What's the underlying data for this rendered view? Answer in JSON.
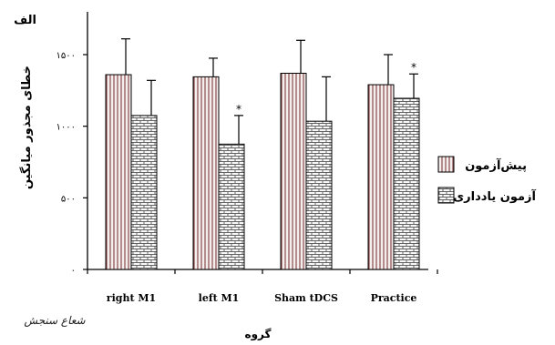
{
  "chart_data": {
    "type": "bar",
    "title": "الف",
    "xlabel": "گروه",
    "ylabel": "خطای مجذور میانگین",
    "categories": [
      "right M1",
      "left M1",
      "Sham tDCS",
      "Practice"
    ],
    "ylim": [
      0,
      1500
    ],
    "yticks": [
      0,
      500,
      1000,
      1500
    ],
    "ytick_labels": [
      "۰",
      "۵۰۰",
      "۱۰۰۰",
      "۱۵۰۰"
    ],
    "grid": false,
    "legend_position": "right",
    "series": [
      {
        "name": "پیش‌آزمون",
        "pattern": "vertical-stripes",
        "values": [
          1360,
          1345,
          1370,
          1290
        ],
        "errors": [
          250,
          130,
          230,
          210
        ],
        "significant": [
          false,
          false,
          false,
          false
        ]
      },
      {
        "name": "آزمون یادداری",
        "pattern": "brick",
        "values": [
          1075,
          875,
          1035,
          1195
        ],
        "errors": [
          245,
          200,
          310,
          170
        ],
        "significant": [
          false,
          true,
          false,
          true
        ]
      }
    ],
    "significance_marker": "*"
  },
  "logo_text": "شعاع سنجش",
  "colors": {
    "series1_stripe": "#8a4a4a",
    "series1_bg": "#f5eeee",
    "brick_line": "#555555",
    "brick_bg": "#f8f8f8",
    "axis": "#000000"
  }
}
